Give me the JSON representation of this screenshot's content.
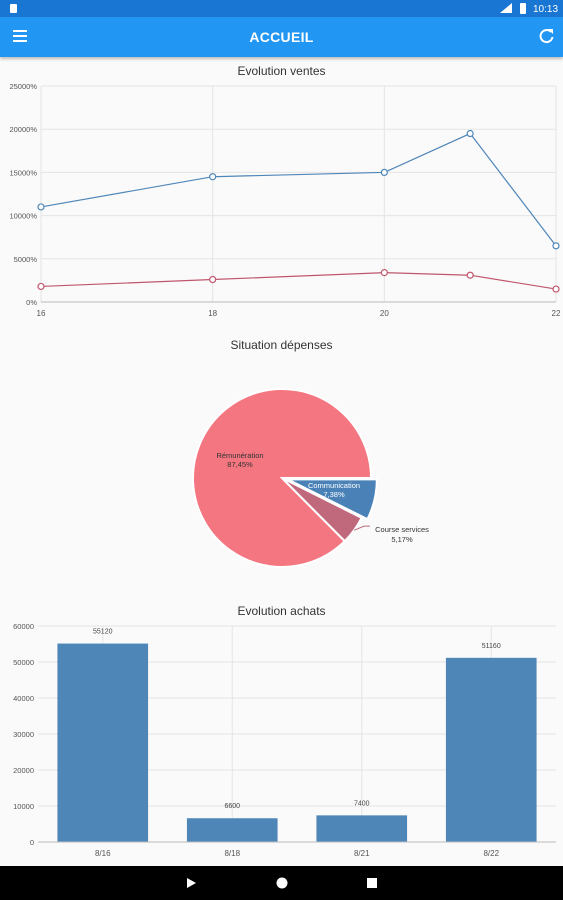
{
  "status_bar": {
    "time": "10:13",
    "icons": [
      "sd-card-icon",
      "signal-icon",
      "battery-icon"
    ]
  },
  "app_bar": {
    "title": "ACCUEIL",
    "menu_icon": "menu-icon",
    "refresh_icon": "refresh-icon"
  },
  "colors": {
    "primary": "#2196f3",
    "primary_dark": "#1976d2",
    "blue_series": "#4f86b8",
    "red_series": "#c0566c",
    "pie_red": "#f47681",
    "pie_blue": "#4a82b8",
    "pie_mauve": "#c0697d"
  },
  "chart_data": [
    {
      "type": "line",
      "title": "Evolution ventes",
      "x": [
        16,
        18,
        20,
        21,
        22
      ],
      "xticks": [
        "16",
        "18",
        "20",
        "22"
      ],
      "yticks": [
        "0%",
        "5000%",
        "10000%",
        "15000%",
        "20000%",
        "25000%"
      ],
      "ylim": [
        0,
        25000
      ],
      "series": [
        {
          "values": [
            11000,
            14500,
            15000,
            19500,
            6500
          ]
        },
        {
          "values": [
            1800,
            2600,
            3400,
            3100,
            1500
          ]
        }
      ],
      "grid": true
    },
    {
      "type": "pie",
      "title": "Situation dépenses",
      "slices": [
        {
          "label": "Rémunération",
          "pct_label": "87,45%",
          "value": 87.45
        },
        {
          "label": "Communication",
          "pct_label": "7,38%",
          "value": 7.38
        },
        {
          "label": "Course services",
          "pct_label": "5,17%",
          "value": 5.17
        }
      ]
    },
    {
      "type": "bar",
      "title": "Evolution achats",
      "categories": [
        "8/16",
        "8/18",
        "8/21",
        "8/22"
      ],
      "values": [
        55120,
        6600,
        7400,
        51160
      ],
      "value_labels": [
        "55120",
        "6600",
        "7400",
        "51160"
      ],
      "yticks": [
        "0",
        "10000",
        "20000",
        "30000",
        "40000",
        "50000",
        "60000"
      ],
      "ylim": [
        0,
        60000
      ],
      "grid": true
    }
  ]
}
